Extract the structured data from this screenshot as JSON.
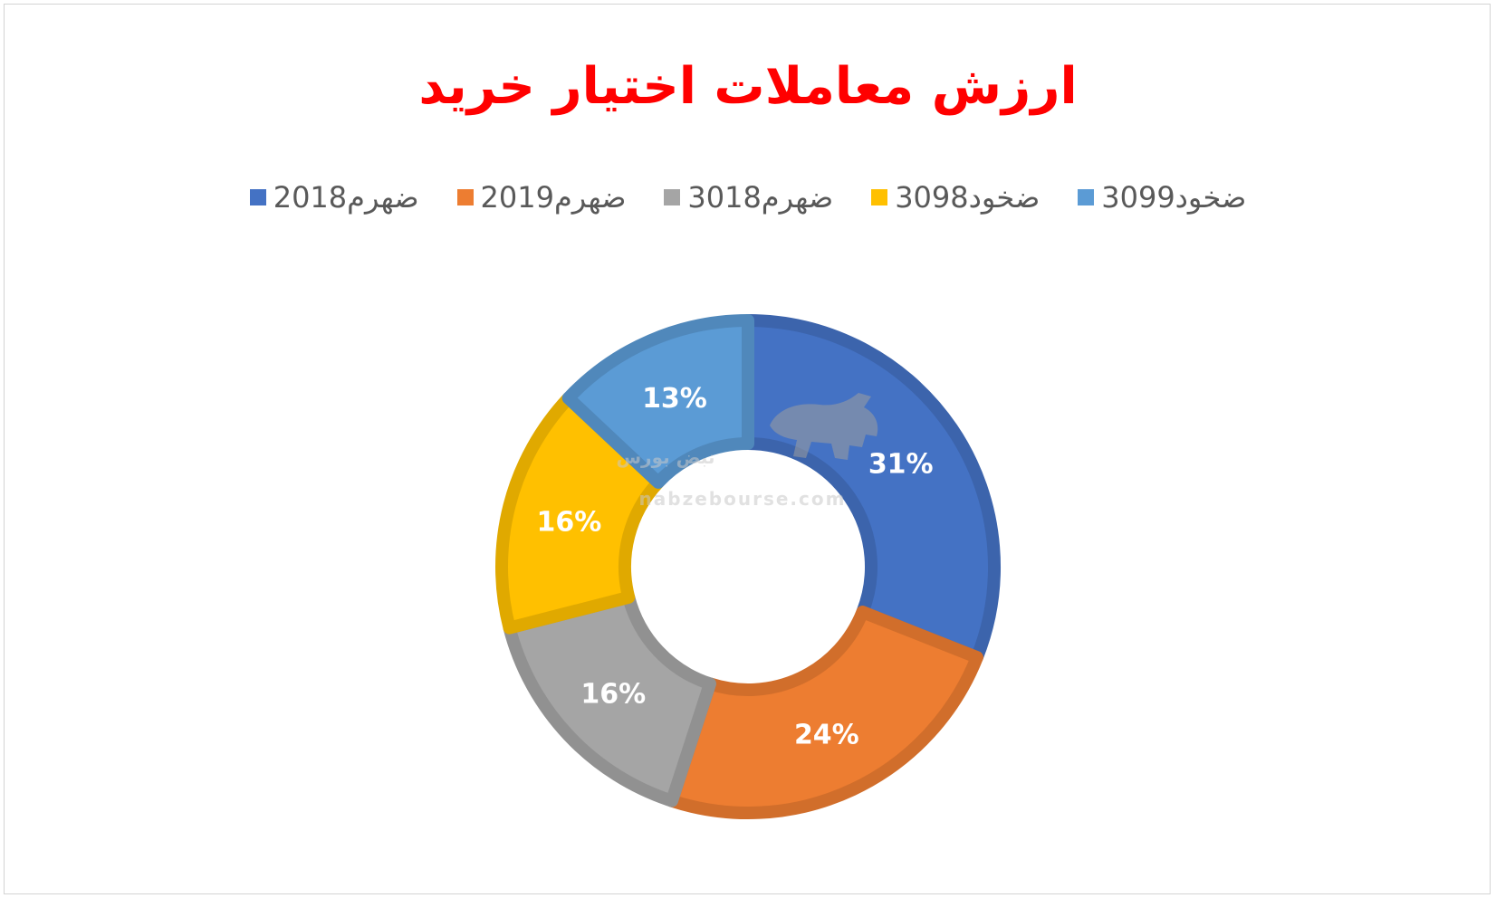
{
  "chart_data": {
    "type": "pie",
    "title": "ارزش معاملات اختیار خرید",
    "legend_position": "top",
    "categories": [
      "ضهرم2018",
      "ضهرم2019",
      "ضهرم3018",
      "ضخود3098",
      "ضخود3099"
    ],
    "values": [
      31,
      24,
      16,
      16,
      13
    ],
    "data_labels": [
      "31%",
      "24%",
      "16%",
      "16%",
      "13%"
    ],
    "colors": [
      "#4472C4",
      "#ED7D31",
      "#A5A5A5",
      "#FFC000",
      "#5B9BD5"
    ],
    "hole_ratio": 0.5
  },
  "title_color": "#FF0000",
  "watermark": {
    "logo_text": "نبض بورس",
    "url": "nabzebourse.com",
    "icon": "bull-icon"
  }
}
